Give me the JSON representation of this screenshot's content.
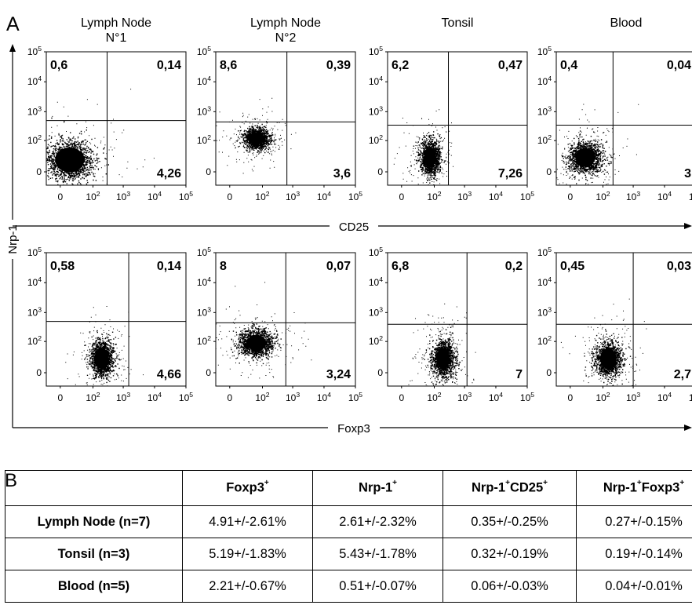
{
  "panel_labels": {
    "a": "A",
    "b": "B"
  },
  "column_titles": [
    {
      "line1": "Lymph Node",
      "line2": "N°1"
    },
    {
      "line1": "Lymph Node",
      "line2": "N°2"
    },
    {
      "line1": "Tonsil",
      "line2": ""
    },
    {
      "line1": "Blood",
      "line2": ""
    }
  ],
  "axis": {
    "y_label": "Nrp-1",
    "row1_x_label": "CD25",
    "row2_x_label": "Foxp3"
  },
  "tick_labels": {
    "y": [
      {
        "base": "10",
        "exp": "5"
      },
      {
        "base": "10",
        "exp": "4"
      },
      {
        "base": "10",
        "exp": "3"
      },
      {
        "base": "10",
        "exp": "2"
      },
      {
        "base": "0",
        "exp": ""
      }
    ],
    "x": [
      {
        "base": "0",
        "exp": ""
      },
      {
        "base": "10",
        "exp": "2"
      },
      {
        "base": "10",
        "exp": "3"
      },
      {
        "base": "10",
        "exp": "4"
      },
      {
        "base": "10",
        "exp": "5"
      }
    ]
  },
  "chart_data": [
    {
      "type": "scatter",
      "sample": "Lymph Node N°1",
      "x_axis": "CD25",
      "y_axis": "Nrp-1",
      "scale": "biexponential",
      "gate": {
        "x": 300,
        "y": 500
      },
      "quadrants": {
        "upper_left": "0,6",
        "upper_right": "0,14",
        "lower_right": "4,26"
      },
      "cloud": {
        "x_center": 10,
        "x_spread": 130,
        "y_center": 15,
        "y_spread": 130
      }
    },
    {
      "type": "scatter",
      "sample": "Lymph Node N°2",
      "x_axis": "CD25",
      "y_axis": "Nrp-1",
      "scale": "biexponential",
      "gate": {
        "x": 650,
        "y": 450
      },
      "quadrants": {
        "upper_left": "8,6",
        "upper_right": "0,39",
        "lower_right": "3,6"
      },
      "cloud": {
        "x_center": 60,
        "x_spread": 180,
        "y_center": 120,
        "y_spread": 280
      }
    },
    {
      "type": "scatter",
      "sample": "Tonsil",
      "x_axis": "CD25",
      "y_axis": "Nrp-1",
      "scale": "biexponential",
      "gate": {
        "x": 300,
        "y": 350
      },
      "quadrants": {
        "upper_left": "6,2",
        "upper_right": "0,47",
        "lower_right": "7,26"
      },
      "cloud": {
        "x_center": 70,
        "x_spread": 160,
        "y_center": 20,
        "y_spread": 110
      }
    },
    {
      "type": "scatter",
      "sample": "Blood",
      "x_axis": "CD25",
      "y_axis": "Nrp-1",
      "scale": "biexponential",
      "gate": {
        "x": 220,
        "y": 350
      },
      "quadrants": {
        "upper_left": "0,4",
        "upper_right": "0,04",
        "lower_right": "3"
      },
      "cloud": {
        "x_center": 20,
        "x_spread": 100,
        "y_center": 20,
        "y_spread": 100
      }
    },
    {
      "type": "scatter",
      "sample": "Lymph Node N°1",
      "x_axis": "Foxp3",
      "y_axis": "Nrp-1",
      "scale": "biexponential",
      "gate": {
        "x": 1500,
        "y": 500
      },
      "quadrants": {
        "upper_left": "0,58",
        "upper_right": "0,14",
        "lower_right": "4,66"
      },
      "cloud": {
        "x_center": 200,
        "x_spread": 500,
        "y_center": 20,
        "y_spread": 120
      }
    },
    {
      "type": "scatter",
      "sample": "Lymph Node N°2",
      "x_axis": "Foxp3",
      "y_axis": "Nrp-1",
      "scale": "biexponential",
      "gate": {
        "x": 600,
        "y": 450
      },
      "quadrants": {
        "upper_left": "8",
        "upper_right": "0,07",
        "lower_right": "3,24"
      },
      "cloud": {
        "x_center": 60,
        "x_spread": 250,
        "y_center": 90,
        "y_spread": 280
      }
    },
    {
      "type": "scatter",
      "sample": "Tonsil",
      "x_axis": "Foxp3",
      "y_axis": "Nrp-1",
      "scale": "biexponential",
      "gate": {
        "x": 1200,
        "y": 400
      },
      "quadrants": {
        "upper_left": "6,8",
        "upper_right": "0,2",
        "lower_right": "7"
      },
      "cloud": {
        "x_center": 200,
        "x_spread": 500,
        "y_center": 20,
        "y_spread": 120
      }
    },
    {
      "type": "scatter",
      "sample": "Blood",
      "x_axis": "Foxp3",
      "y_axis": "Nrp-1",
      "scale": "biexponential",
      "gate": {
        "x": 1000,
        "y": 400
      },
      "quadrants": {
        "upper_left": "0,45",
        "upper_right": "0,03",
        "lower_right": "2,7"
      },
      "cloud": {
        "x_center": 150,
        "x_spread": 450,
        "y_center": 20,
        "y_spread": 110
      }
    },
    {
      "type": "table",
      "columns": [
        {
          "base": "",
          "sup": ""
        },
        {
          "base": "Foxp3",
          "sup": "+"
        },
        {
          "base": "Nrp-1",
          "sup": "+"
        },
        {
          "base": "Nrp-1",
          "sup": "+",
          "base2": "CD25",
          "sup2": "+"
        },
        {
          "base": "Nrp-1",
          "sup": "+",
          "base2": "Foxp3",
          "sup2": "+"
        }
      ],
      "rows": [
        {
          "label": "Lymph Node (n=7)",
          "values": [
            "4.91+/-2.61%",
            "2.61+/-2.32%",
            "0.35+/-0.25%",
            "0.27+/-0.15%"
          ]
        },
        {
          "label": "Tonsil (n=3)",
          "values": [
            "5.19+/-1.83%",
            "5.43+/-1.78%",
            "0.32+/-0.19%",
            "0.19+/-0.14%"
          ]
        },
        {
          "label": "Blood (n=5)",
          "values": [
            "2.21+/-0.67%",
            "0.51+/-0.07%",
            "0.06+/-0.03%",
            "0.04+/-0.01%"
          ]
        }
      ]
    }
  ]
}
